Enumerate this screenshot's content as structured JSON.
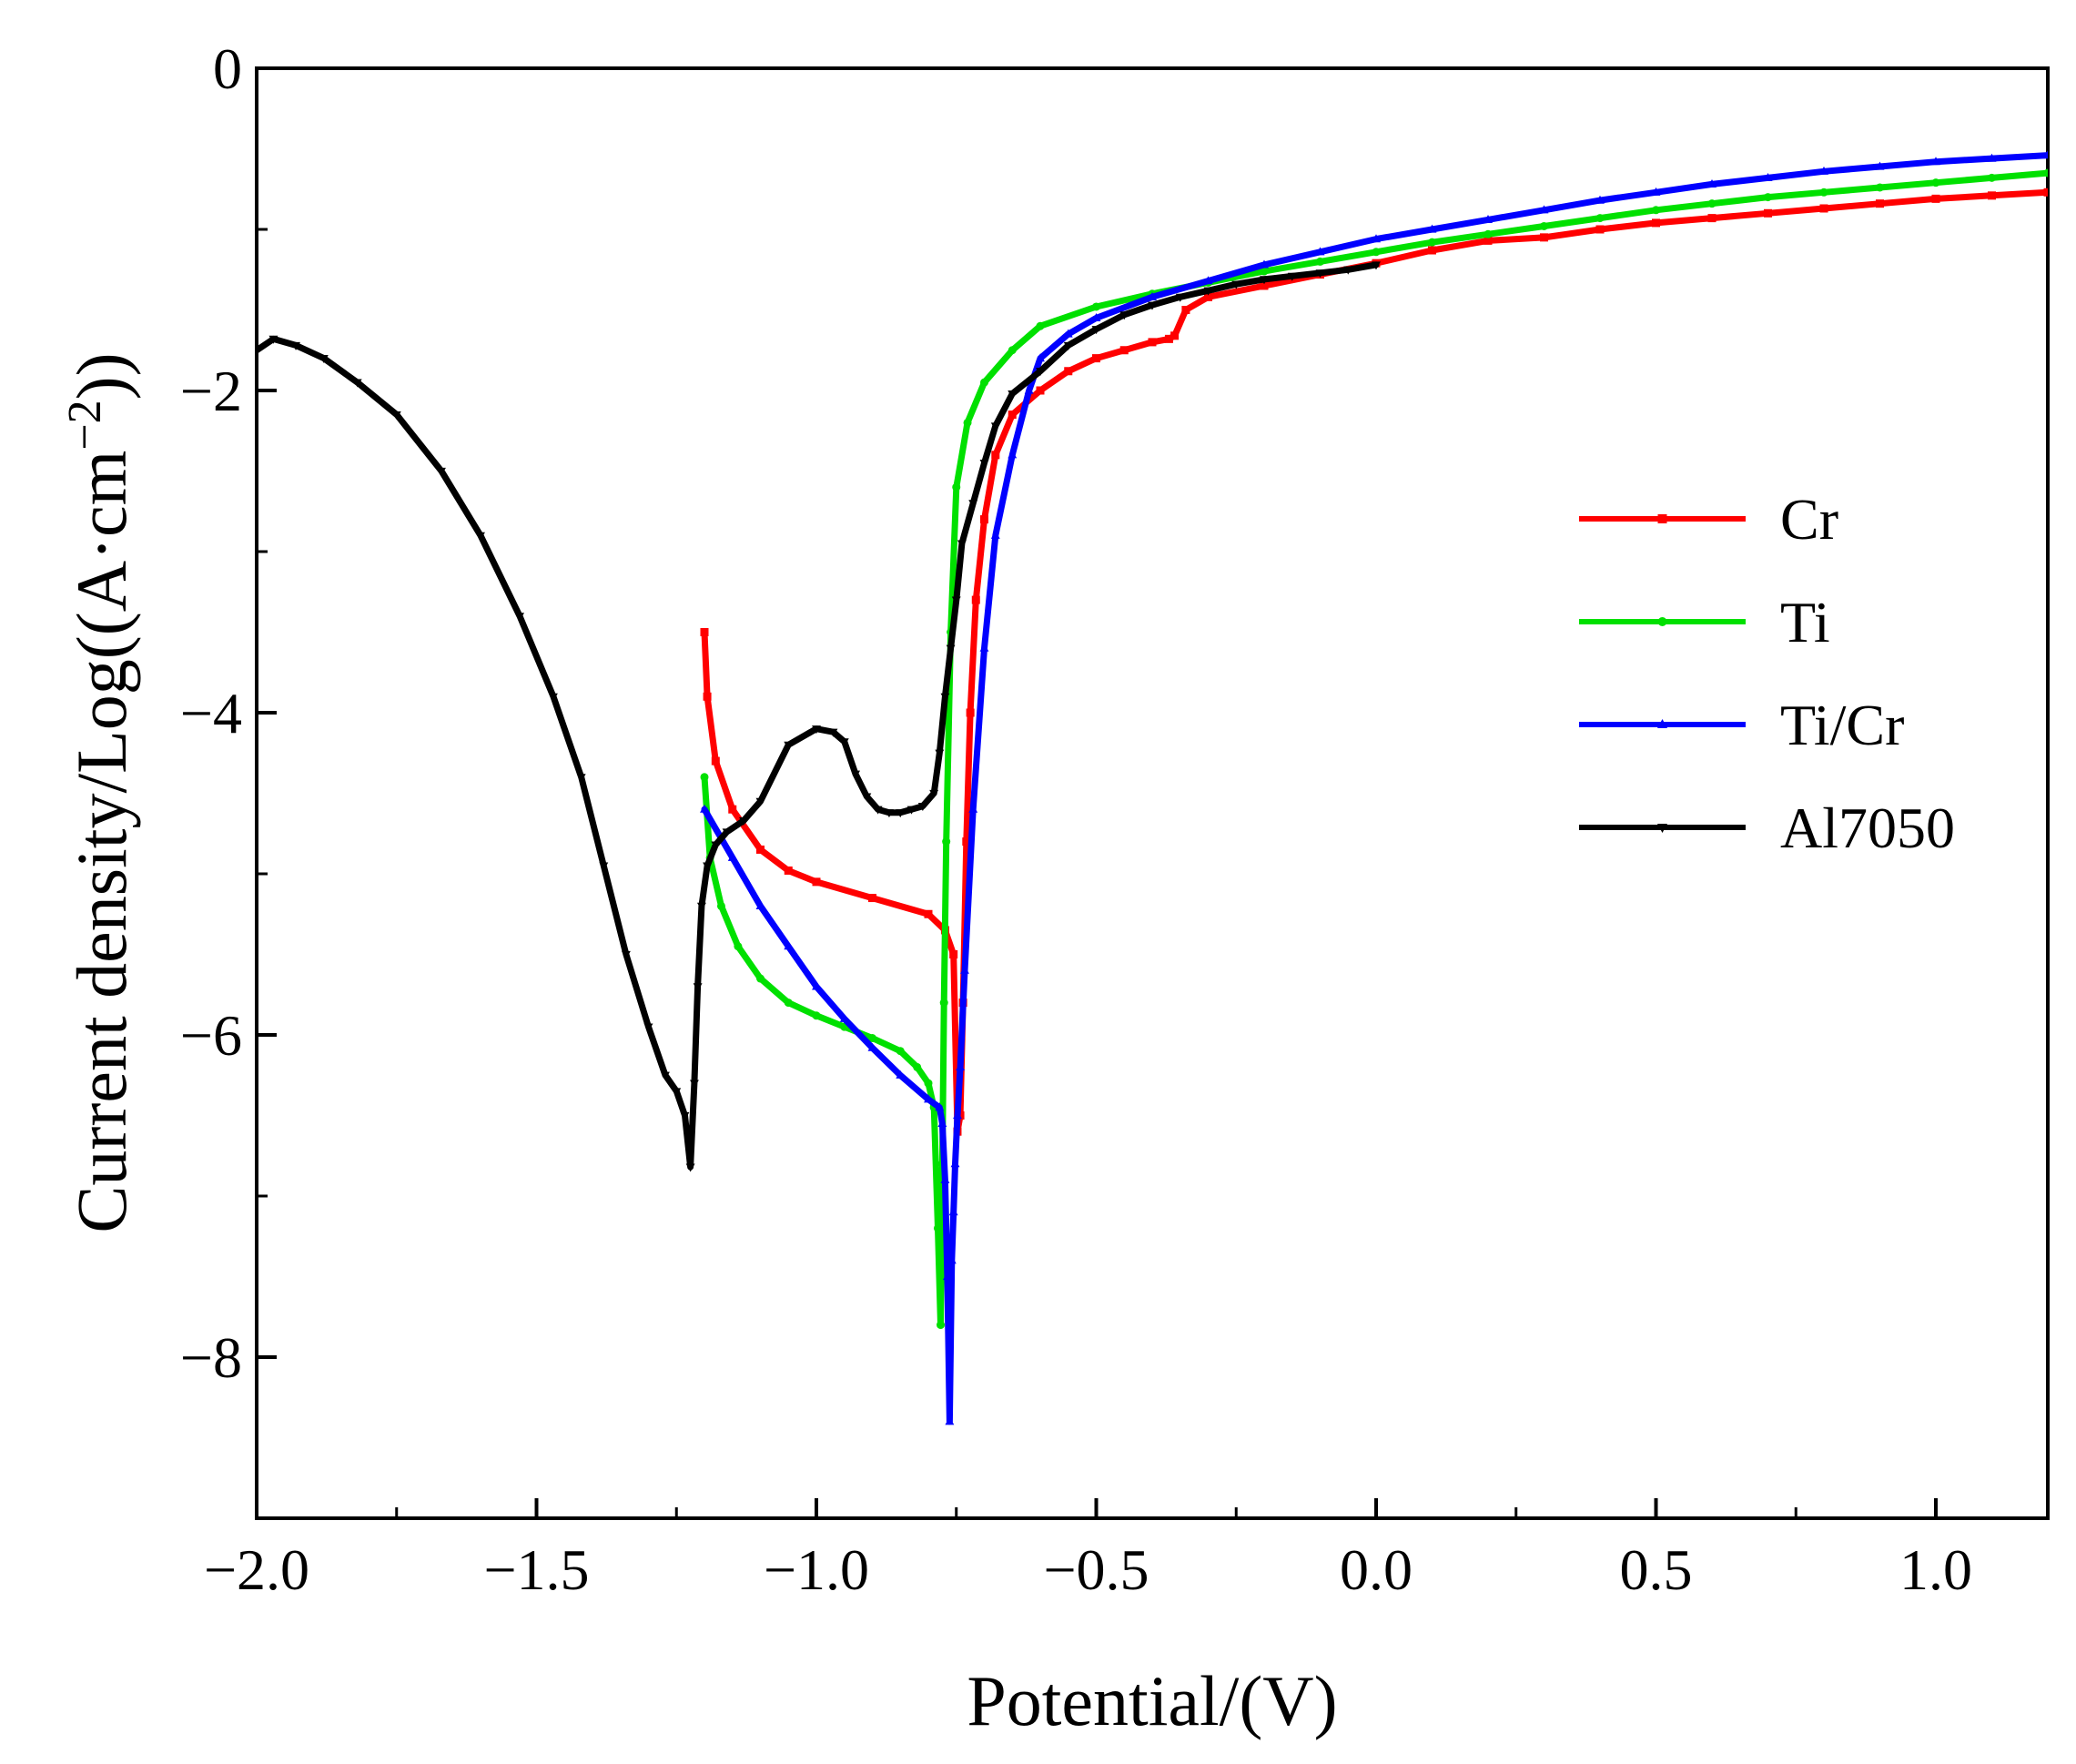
{
  "chart_data": {
    "type": "line",
    "xlabel": "Potential/(V)",
    "ylabel_prefix": "Current density/Log((A·cm",
    "ylabel_exp": "−2",
    "ylabel_suffix": "))",
    "xlim": [
      -2.0,
      1.2
    ],
    "ylim": [
      -9,
      0
    ],
    "x_ticks": [
      {
        "value": -2.0,
        "label": "−2.0"
      },
      {
        "value": -1.5,
        "label": "−1.5"
      },
      {
        "value": -1.0,
        "label": "−1.0"
      },
      {
        "value": -0.5,
        "label": "−0.5"
      },
      {
        "value": 0.0,
        "label": "0.0"
      },
      {
        "value": 0.5,
        "label": "0.5"
      },
      {
        "value": 1.0,
        "label": "1.0"
      }
    ],
    "x_minor_ticks": [
      -1.75,
      -1.25,
      -0.75,
      -0.25,
      0.25,
      0.75
    ],
    "y_ticks": [
      {
        "value": 0,
        "label": "0"
      },
      {
        "value": -2,
        "label": "−2"
      },
      {
        "value": -4,
        "label": "−4"
      },
      {
        "value": -6,
        "label": "−6"
      },
      {
        "value": -8,
        "label": "−8"
      }
    ],
    "y_minor_ticks": [
      -1,
      -3,
      -5,
      -7,
      -9
    ],
    "legend_position": "right-middle",
    "series": [
      {
        "name": "Cr",
        "color": "#ff0000",
        "marker": "square",
        "x": [
          -1.2,
          -1.195,
          -1.18,
          -1.15,
          -1.1,
          -1.05,
          -1.0,
          -0.9,
          -0.8,
          -0.77,
          -0.755,
          -0.748,
          -0.743,
          -0.738,
          -0.732,
          -0.725,
          -0.715,
          -0.7,
          -0.68,
          -0.65,
          -0.6,
          -0.55,
          -0.5,
          -0.45,
          -0.4,
          -0.37,
          -0.36,
          -0.34,
          -0.3,
          -0.2,
          -0.1,
          0.0,
          0.1,
          0.2,
          0.3,
          0.4,
          0.5,
          0.6,
          0.7,
          0.8,
          0.9,
          1.0,
          1.1,
          1.2
        ],
        "y": [
          -3.5,
          -3.9,
          -4.3,
          -4.6,
          -4.85,
          -4.98,
          -5.05,
          -5.15,
          -5.25,
          -5.35,
          -5.5,
          -6.6,
          -6.5,
          -5.8,
          -4.8,
          -4.0,
          -3.3,
          -2.8,
          -2.4,
          -2.15,
          -2.0,
          -1.88,
          -1.8,
          -1.75,
          -1.7,
          -1.68,
          -1.66,
          -1.5,
          -1.42,
          -1.35,
          -1.28,
          -1.21,
          -1.13,
          -1.07,
          -1.05,
          -1.0,
          -0.96,
          -0.93,
          -0.9,
          -0.87,
          -0.84,
          -0.81,
          -0.79,
          -0.77
        ]
      },
      {
        "name": "Ti",
        "color": "#00e000",
        "marker": "circle",
        "x": [
          -1.2,
          -1.19,
          -1.17,
          -1.14,
          -1.1,
          -1.05,
          -1.0,
          -0.95,
          -0.9,
          -0.85,
          -0.82,
          -0.8,
          -0.79,
          -0.783,
          -0.778,
          -0.775,
          -0.772,
          -0.768,
          -0.76,
          -0.75,
          -0.73,
          -0.7,
          -0.65,
          -0.6,
          -0.5,
          -0.4,
          -0.3,
          -0.2,
          -0.1,
          0.0,
          0.1,
          0.2,
          0.3,
          0.4,
          0.5,
          0.6,
          0.7,
          0.8,
          0.9,
          1.0,
          1.1,
          1.2
        ],
        "y": [
          -4.4,
          -4.9,
          -5.2,
          -5.45,
          -5.65,
          -5.8,
          -5.88,
          -5.95,
          -6.02,
          -6.1,
          -6.2,
          -6.3,
          -6.45,
          -7.2,
          -7.8,
          -6.8,
          -5.8,
          -4.8,
          -3.5,
          -2.6,
          -2.2,
          -1.95,
          -1.75,
          -1.6,
          -1.48,
          -1.4,
          -1.33,
          -1.26,
          -1.2,
          -1.14,
          -1.08,
          -1.03,
          -0.98,
          -0.93,
          -0.88,
          -0.84,
          -0.8,
          -0.77,
          -0.74,
          -0.71,
          -0.68,
          -0.65
        ]
      },
      {
        "name": "Ti/Cr",
        "color": "#0000ff",
        "marker": "triangle",
        "x": [
          -1.2,
          -1.15,
          -1.1,
          -1.05,
          -1.0,
          -0.95,
          -0.9,
          -0.85,
          -0.8,
          -0.78,
          -0.775,
          -0.77,
          -0.766,
          -0.762,
          -0.758,
          -0.755,
          -0.752,
          -0.748,
          -0.743,
          -0.735,
          -0.72,
          -0.7,
          -0.68,
          -0.65,
          -0.62,
          -0.6,
          -0.55,
          -0.5,
          -0.4,
          -0.3,
          -0.2,
          -0.1,
          0.0,
          0.1,
          0.2,
          0.3,
          0.4,
          0.5,
          0.6,
          0.7,
          0.8,
          0.9,
          1.0,
          1.1,
          1.2
        ],
        "y": [
          -4.6,
          -4.9,
          -5.2,
          -5.45,
          -5.7,
          -5.9,
          -6.08,
          -6.25,
          -6.4,
          -6.45,
          -6.55,
          -6.9,
          -7.5,
          -8.4,
          -7.4,
          -7.1,
          -6.8,
          -6.5,
          -6.2,
          -5.6,
          -4.6,
          -3.6,
          -2.9,
          -2.4,
          -2.0,
          -1.8,
          -1.65,
          -1.55,
          -1.42,
          -1.32,
          -1.22,
          -1.14,
          -1.06,
          -1.0,
          -0.94,
          -0.88,
          -0.82,
          -0.77,
          -0.72,
          -0.68,
          -0.64,
          -0.61,
          -0.58,
          -0.56,
          -0.54
        ]
      },
      {
        "name": "Al7050",
        "color": "#000000",
        "marker": "triangle-down",
        "x": [
          -2.0,
          -1.97,
          -1.93,
          -1.88,
          -1.82,
          -1.75,
          -1.67,
          -1.6,
          -1.53,
          -1.47,
          -1.42,
          -1.38,
          -1.34,
          -1.3,
          -1.27,
          -1.25,
          -1.235,
          -1.225,
          -1.218,
          -1.212,
          -1.205,
          -1.195,
          -1.18,
          -1.16,
          -1.13,
          -1.1,
          -1.05,
          -1.0,
          -0.97,
          -0.95,
          -0.93,
          -0.91,
          -0.89,
          -0.87,
          -0.85,
          -0.83,
          -0.81,
          -0.79,
          -0.78,
          -0.77,
          -0.76,
          -0.75,
          -0.74,
          -0.72,
          -0.7,
          -0.68,
          -0.65,
          -0.6,
          -0.55,
          -0.5,
          -0.45,
          -0.4,
          -0.35,
          -0.3,
          -0.25,
          -0.2,
          -0.15,
          -0.1,
          -0.05,
          0.0
        ],
        "y": [
          -1.75,
          -1.68,
          -1.72,
          -1.8,
          -1.95,
          -2.15,
          -2.5,
          -2.9,
          -3.4,
          -3.9,
          -4.4,
          -4.95,
          -5.5,
          -5.95,
          -6.25,
          -6.35,
          -6.5,
          -6.82,
          -6.3,
          -5.7,
          -5.2,
          -4.95,
          -4.82,
          -4.74,
          -4.67,
          -4.55,
          -4.2,
          -4.1,
          -4.12,
          -4.18,
          -4.38,
          -4.52,
          -4.6,
          -4.62,
          -4.62,
          -4.6,
          -4.58,
          -4.5,
          -4.25,
          -3.9,
          -3.6,
          -3.3,
          -2.95,
          -2.7,
          -2.45,
          -2.22,
          -2.02,
          -1.88,
          -1.72,
          -1.62,
          -1.53,
          -1.47,
          -1.42,
          -1.38,
          -1.34,
          -1.31,
          -1.29,
          -1.27,
          -1.25,
          -1.22
        ]
      }
    ]
  }
}
